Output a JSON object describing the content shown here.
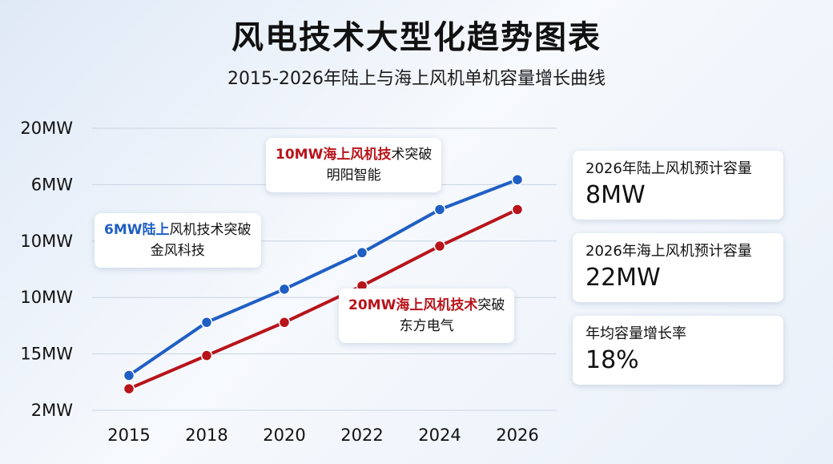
{
  "title": "风电技术大型化趋势图表",
  "subtitle": "2015-2026年陆上与海上风机单机容量增长曲线",
  "chart_data": {
    "type": "line",
    "categories": [
      "2015",
      "2018",
      "2020",
      "2022",
      "2024",
      "2026"
    ],
    "y_tick_labels": [
      "20MW",
      "6MW",
      "10MW",
      "10MW",
      "15MW",
      "2MW"
    ],
    "grid": true,
    "series": [
      {
        "color": "#1f5fc4",
        "values": [
          2.3,
          3.9,
          4.9,
          6.0,
          7.3,
          8.2
        ]
      },
      {
        "color": "#b8141b",
        "values": [
          1.9,
          2.9,
          3.9,
          5.0,
          6.2,
          7.3
        ]
      }
    ],
    "ylim": [
      1.25,
      9.75
    ],
    "annotations": [
      {
        "highlight": "6MW陆上",
        "rest": "风机技术突破",
        "sub": "金风科技",
        "color": "#1f5fc4"
      },
      {
        "highlight": "10MW海上风机技",
        "rest": "术突破",
        "sub": "明阳智能",
        "color": "#b8141b"
      },
      {
        "highlight": "20MW海上风机技术",
        "rest": "突破",
        "sub": "东方电气",
        "color": "#b8141b"
      }
    ]
  },
  "stats": [
    {
      "label": "2026年陆上风机预计容量",
      "value": "8MW"
    },
    {
      "label": "2026年海上风机预计容量",
      "value": "22MW"
    },
    {
      "label": "年均容量增长率",
      "value": "18%"
    }
  ]
}
